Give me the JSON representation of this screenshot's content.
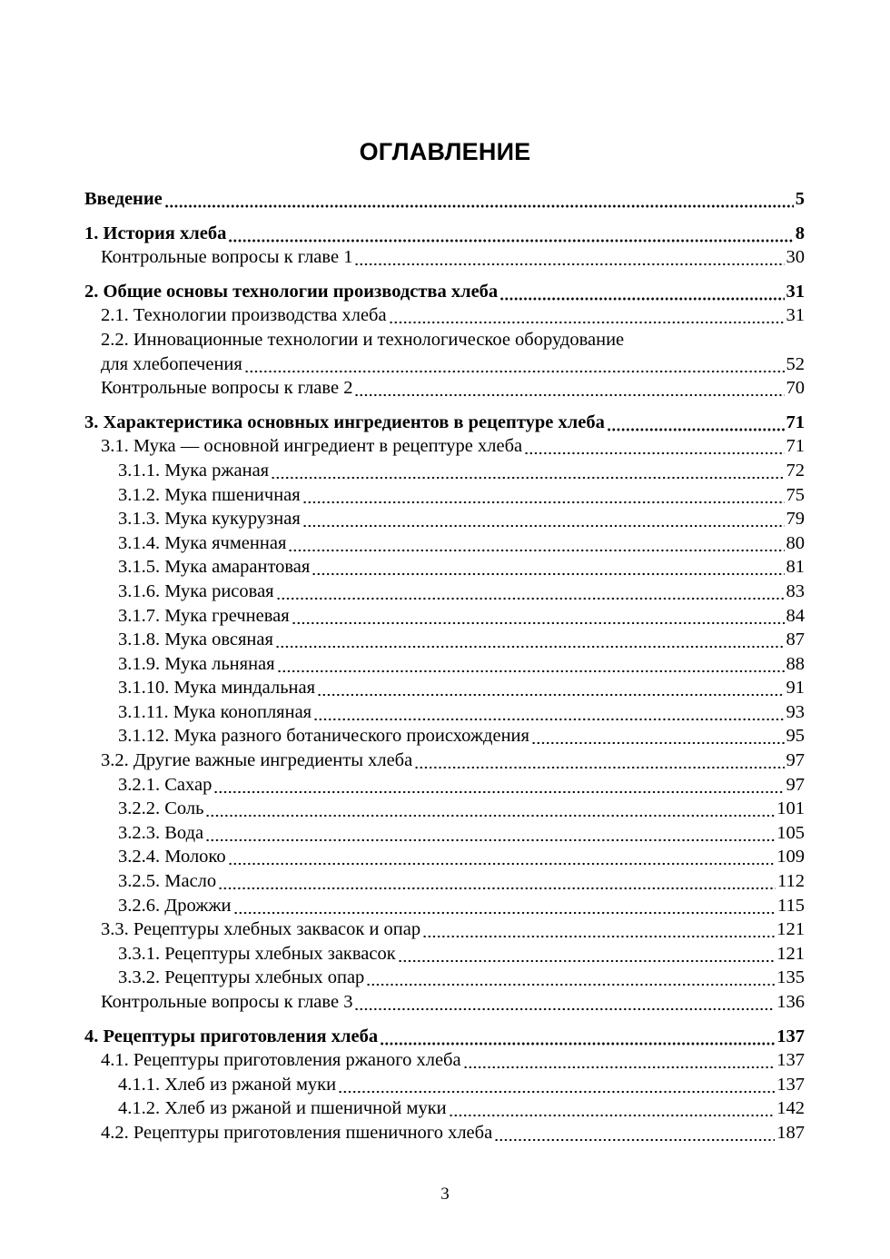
{
  "title": "ОГЛАВЛЕНИЕ",
  "page_number": "3",
  "toc": [
    {
      "level": 0,
      "text": "Введение",
      "page": "5"
    },
    {
      "level": 0,
      "text": "1. История хлеба",
      "page": "8"
    },
    {
      "level": 1,
      "text": "Контрольные вопросы к главе 1",
      "page": "30"
    },
    {
      "level": 0,
      "text": "2. Общие основы технологии производства хлеба",
      "page": "31"
    },
    {
      "level": 1,
      "text": "2.1. Технологии производства хлеба",
      "page": "31"
    },
    {
      "level": 1,
      "line1": "2.2. Инновационные технологии и технологическое оборудование",
      "text": "для хлебопечения",
      "page": "52"
    },
    {
      "level": 1,
      "text": "Контрольные вопросы к главе 2",
      "page": "70"
    },
    {
      "level": 0,
      "text": "3. Характеристика основных ингредиентов в рецептуре хлеба",
      "page": "71"
    },
    {
      "level": 1,
      "text": "3.1. Мука — основной ингредиент в рецептуре хлеба",
      "page": "71"
    },
    {
      "level": 2,
      "text": "3.1.1. Мука ржаная",
      "page": "72"
    },
    {
      "level": 2,
      "text": "3.1.2. Мука пшеничная",
      "page": "75"
    },
    {
      "level": 2,
      "text": "3.1.3. Мука кукурузная",
      "page": "79"
    },
    {
      "level": 2,
      "text": "3.1.4. Мука ячменная",
      "page": "80"
    },
    {
      "level": 2,
      "text": "3.1.5. Мука амарантовая",
      "page": "81"
    },
    {
      "level": 2,
      "text": "3.1.6. Мука рисовая",
      "page": "83"
    },
    {
      "level": 2,
      "text": "3.1.7. Мука гречневая",
      "page": "84"
    },
    {
      "level": 2,
      "text": "3.1.8. Мука овсяная",
      "page": "87"
    },
    {
      "level": 2,
      "text": "3.1.9. Мука льняная",
      "page": "88"
    },
    {
      "level": 2,
      "text": "3.1.10. Мука миндальная",
      "page": "91"
    },
    {
      "level": 2,
      "text": "3.1.11. Мука конопляная",
      "page": "93"
    },
    {
      "level": 2,
      "text": "3.1.12. Мука разного ботанического происхождения",
      "page": "95"
    },
    {
      "level": 1,
      "text": "3.2. Другие важные ингредиенты хлеба",
      "page": "97"
    },
    {
      "level": 2,
      "text": "3.2.1. Сахар",
      "page": "97"
    },
    {
      "level": 2,
      "text": "3.2.2. Соль",
      "page": "101"
    },
    {
      "level": 2,
      "text": "3.2.3. Вода",
      "page": "105"
    },
    {
      "level": 2,
      "text": "3.2.4. Молоко",
      "page": "109"
    },
    {
      "level": 2,
      "text": "3.2.5. Масло",
      "page": "112"
    },
    {
      "level": 2,
      "text": "3.2.6. Дрожжи",
      "page": "115"
    },
    {
      "level": 1,
      "text": "3.3. Рецептуры хлебных заквасок и опар",
      "page": "121"
    },
    {
      "level": 2,
      "text": "3.3.1. Рецептуры хлебных заквасок",
      "page": "121"
    },
    {
      "level": 2,
      "text": "3.3.2. Рецептуры хлебных опар",
      "page": "135"
    },
    {
      "level": 1,
      "text": "Контрольные вопросы к главе 3",
      "page": "136"
    },
    {
      "level": 0,
      "text": "4. Рецептуры приготовления хлеба",
      "page": "137"
    },
    {
      "level": 1,
      "text": "4.1. Рецептуры приготовления ржаного хлеба",
      "page": "137"
    },
    {
      "level": 2,
      "text": "4.1.1. Хлеб из ржаной муки",
      "page": "137"
    },
    {
      "level": 2,
      "text": "4.1.2. Хлеб из ржаной и пшеничной муки",
      "page": "142"
    },
    {
      "level": 1,
      "text": "4.2. Рецептуры приготовления пшеничного хлеба",
      "page": "187"
    }
  ]
}
